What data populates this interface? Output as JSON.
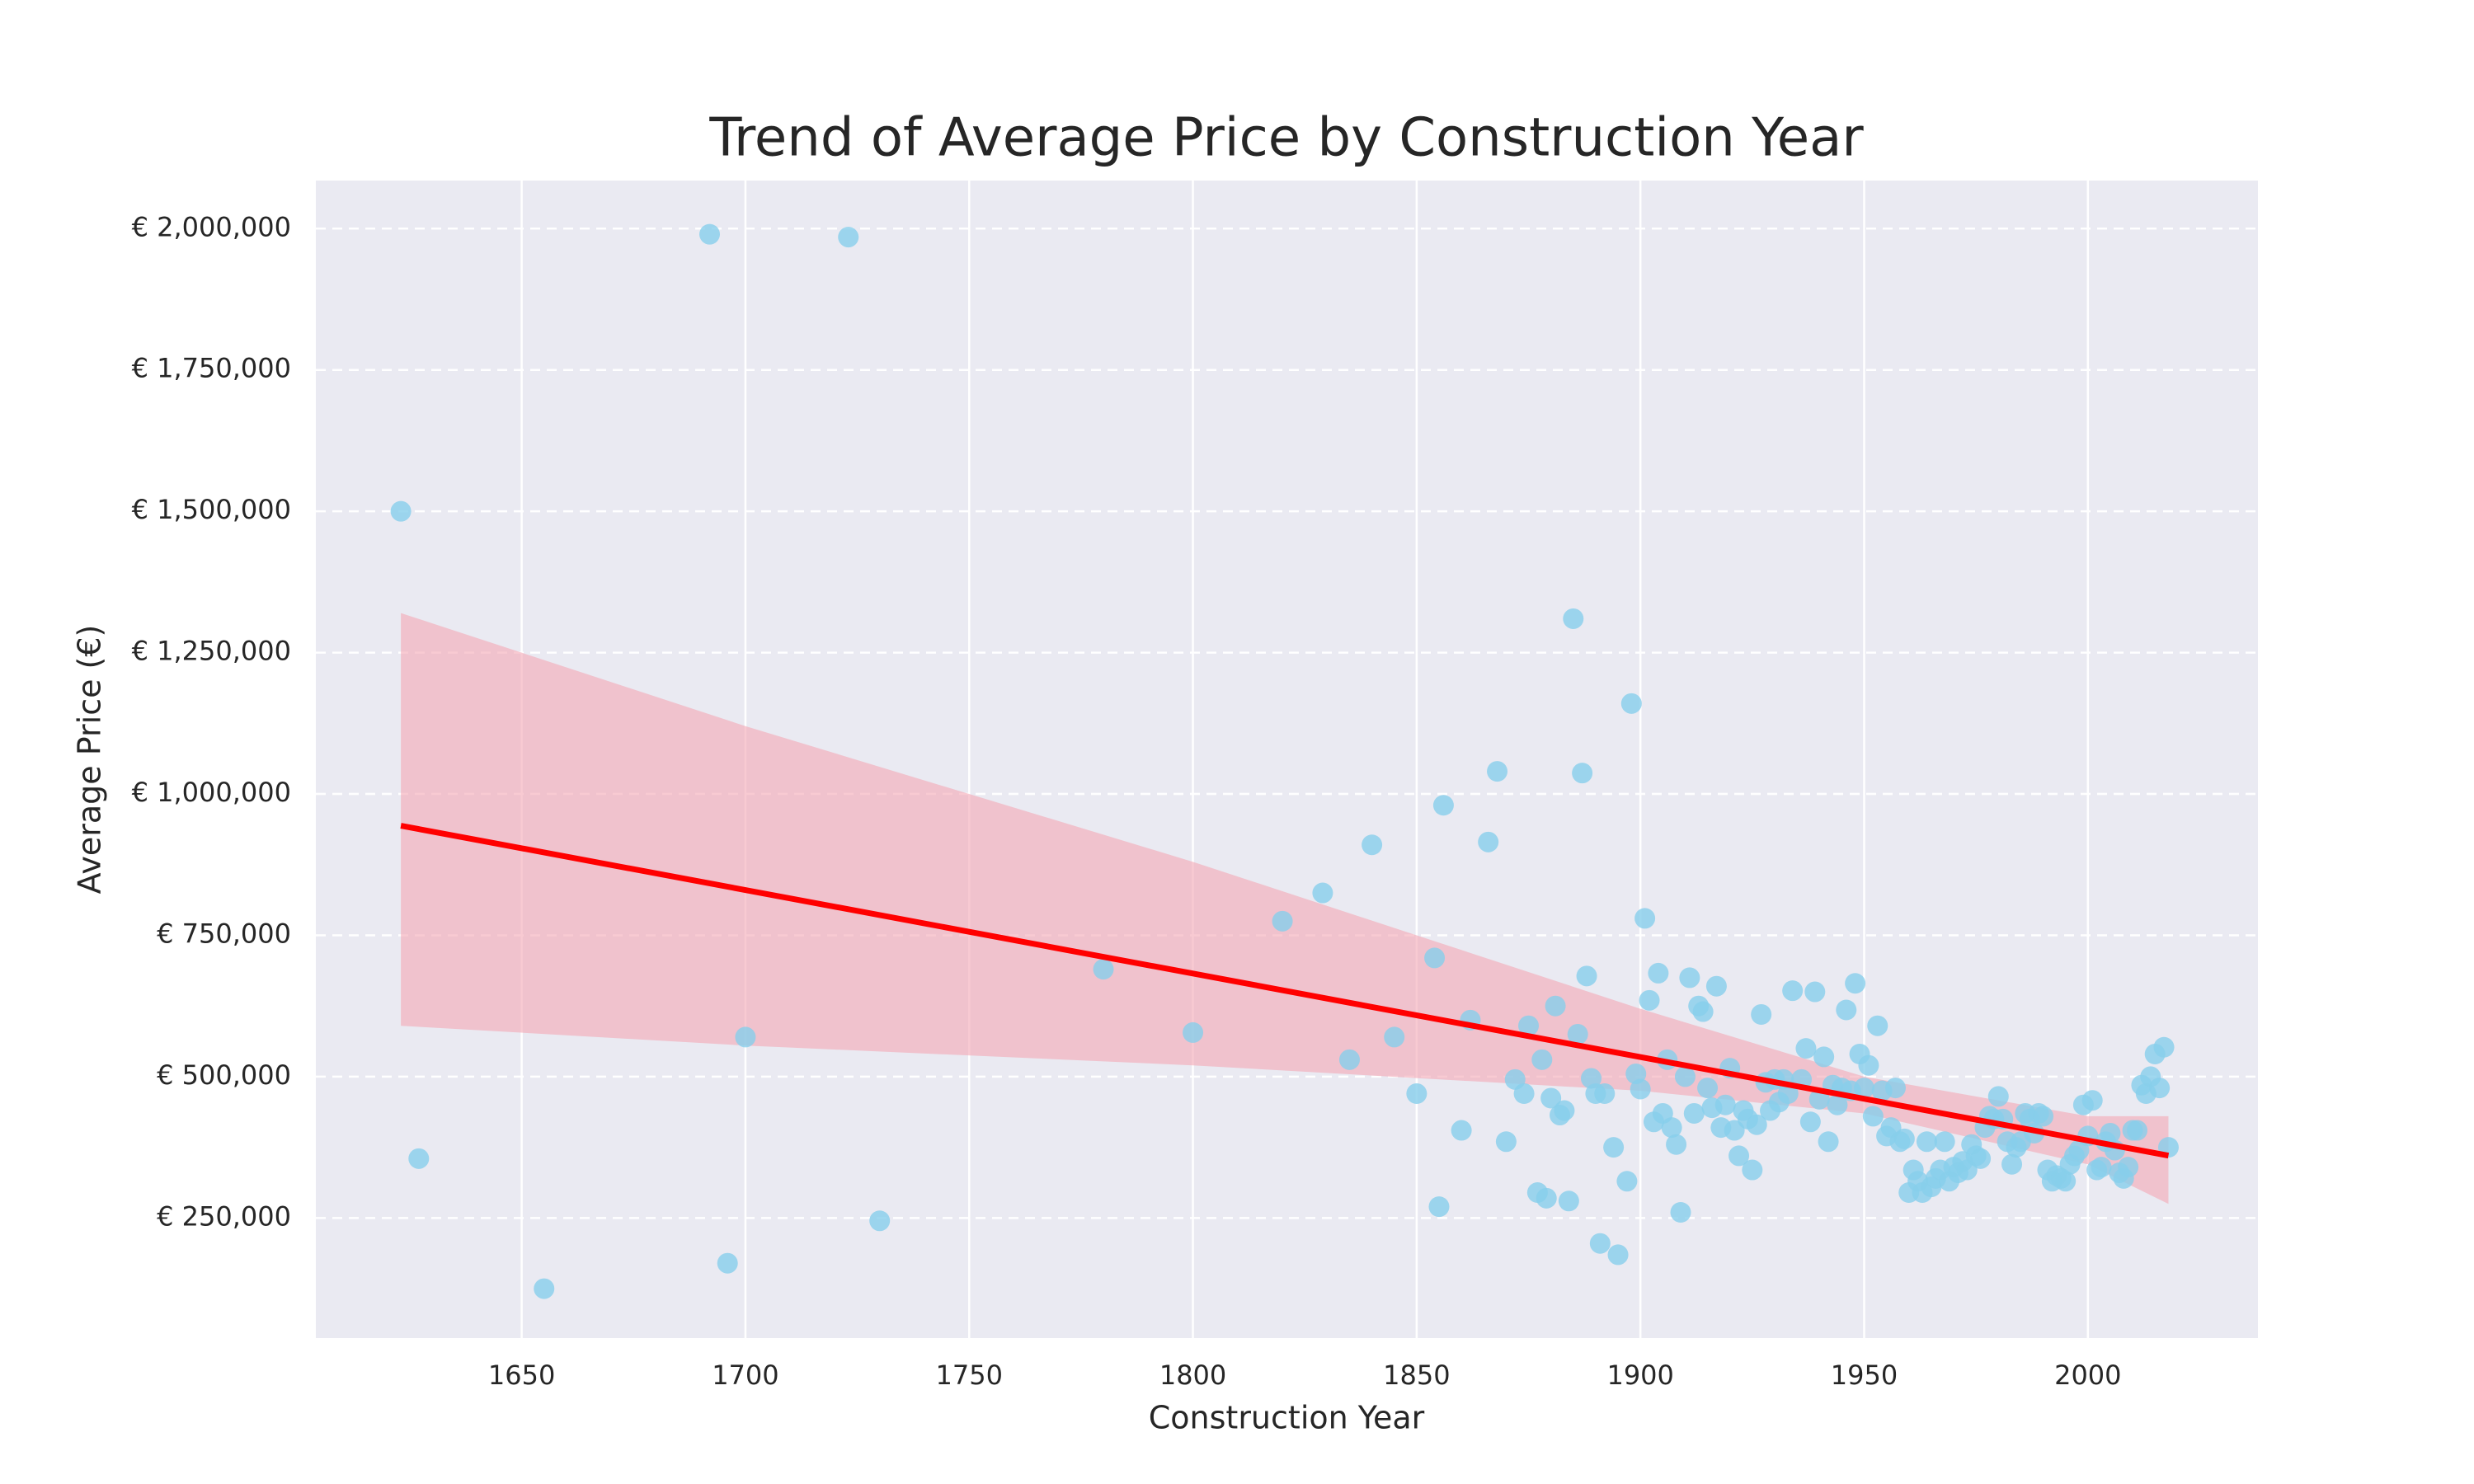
{
  "chart_data": {
    "type": "scatter",
    "title": "Trend of Average Price by Construction Year",
    "xlabel": "Construction Year",
    "ylabel": "Average Price (€)",
    "xlim": [
      1604,
      2038
    ],
    "ylim": [
      37600,
      2085000
    ],
    "xticks": [
      1650,
      1700,
      1750,
      1800,
      1850,
      1900,
      1950,
      2000
    ],
    "yticks": [
      {
        "value": 250000,
        "label": "€ 250,000"
      },
      {
        "value": 500000,
        "label": "€ 500,000"
      },
      {
        "value": 750000,
        "label": "€ 750,000"
      },
      {
        "value": 1000000,
        "label": "€ 1,000,000"
      },
      {
        "value": 1250000,
        "label": "€ 1,250,000"
      },
      {
        "value": 1500000,
        "label": "€ 1,500,000"
      },
      {
        "value": 1750000,
        "label": "€ 1,750,000"
      },
      {
        "value": 2000000,
        "label": "€ 2,000,000"
      }
    ],
    "grid": true,
    "background": "#eaeaf2",
    "series": [
      {
        "color": "#87ceeb",
        "x": [
          1623,
          1627,
          1655,
          1692,
          1696,
          1700,
          1723,
          1730,
          1780,
          1800,
          1820,
          1829,
          1835,
          1840,
          1845,
          1850,
          1854,
          1855,
          1856,
          1860,
          1862,
          1866,
          1868,
          1870,
          1872,
          1874,
          1875,
          1877,
          1878,
          1879,
          1880,
          1881,
          1882,
          1883,
          1884,
          1885,
          1886,
          1887,
          1888,
          1889,
          1890,
          1891,
          1892,
          1894,
          1895,
          1897,
          1898,
          1899,
          1900,
          1901,
          1902,
          1903,
          1904,
          1905,
          1906,
          1907,
          1908,
          1909,
          1910,
          1911,
          1912,
          1913,
          1914,
          1915,
          1916,
          1917,
          1918,
          1919,
          1920,
          1921,
          1922,
          1923,
          1924,
          1925,
          1926,
          1927,
          1928,
          1929,
          1930,
          1931,
          1932,
          1933,
          1934,
          1936,
          1937,
          1938,
          1939,
          1940,
          1941,
          1942,
          1943,
          1944,
          1945,
          1946,
          1947,
          1948,
          1949,
          1950,
          1951,
          1952,
          1953,
          1954,
          1955,
          1956,
          1957,
          1958,
          1959,
          1960,
          1961,
          1962,
          1963,
          1964,
          1965,
          1966,
          1967,
          1968,
          1969,
          1970,
          1971,
          1972,
          1973,
          1974,
          1975,
          1976,
          1977,
          1978,
          1979,
          1980,
          1981,
          1982,
          1983,
          1984,
          1985,
          1986,
          1987,
          1988,
          1989,
          1990,
          1991,
          1992,
          1993,
          1994,
          1995,
          1996,
          1997,
          1998,
          1999,
          2000,
          2001,
          2002,
          2003,
          2004,
          2005,
          2006,
          2007,
          2008,
          2009,
          2010,
          2011,
          2012,
          2013,
          2014,
          2015,
          2016,
          2017,
          2018
        ],
        "values": [
          1500000,
          355000,
          125000,
          1990000,
          170000,
          570000,
          1985000,
          245000,
          690000,
          578000,
          775000,
          825000,
          530000,
          910000,
          570000,
          470000,
          710000,
          270000,
          980000,
          405000,
          600000,
          915000,
          1040000,
          385000,
          495000,
          470000,
          590000,
          295000,
          530000,
          285000,
          462000,
          625000,
          432000,
          440000,
          280000,
          1310000,
          575000,
          1037000,
          678000,
          497000,
          470000,
          205000,
          470000,
          375000,
          185000,
          315000,
          1160000,
          505000,
          478000,
          780000,
          635000,
          420000,
          683000,
          435000,
          530000,
          410000,
          380000,
          260000,
          500000,
          675000,
          435000,
          625000,
          615000,
          480000,
          445000,
          660000,
          410000,
          450000,
          515000,
          405000,
          360000,
          440000,
          425000,
          335000,
          415000,
          610000,
          490000,
          440000,
          495000,
          455000,
          495000,
          470000,
          652000,
          495000,
          550000,
          420000,
          650000,
          460000,
          535000,
          385000,
          485000,
          450000,
          480000,
          618000,
          475000,
          665000,
          540000,
          480000,
          520000,
          430000,
          590000,
          475000,
          395000,
          410000,
          480000,
          385000,
          390000,
          295000,
          335000,
          315000,
          295000,
          385000,
          305000,
          320000,
          335000,
          385000,
          315000,
          340000,
          330000,
          350000,
          335000,
          380000,
          360000,
          355000,
          410000,
          430000,
          425000,
          465000,
          425000,
          385000,
          345000,
          375000,
          385000,
          435000,
          425000,
          400000,
          435000,
          430000,
          335000,
          315000,
          325000,
          320000,
          315000,
          345000,
          360000,
          370000,
          450000,
          395000,
          458000,
          335000,
          340000,
          385000,
          400000,
          370000,
          330000,
          320000,
          340000,
          405000,
          405000,
          485000,
          470000,
          500000,
          540000,
          480000,
          552000,
          375000
        ]
      }
    ],
    "regression": {
      "color": "#ff0000",
      "x": [
        1623,
        2018
      ],
      "values": [
        943800,
        360400
      ]
    },
    "band": {
      "color": "#f4a6b4",
      "x": [
        1623,
        1700,
        1800,
        1900,
        1950,
        2000,
        2018
      ],
      "upper": [
        1320000,
        1120000,
        880000,
        620000,
        500000,
        430000,
        430000
      ],
      "lower": [
        590000,
        555000,
        520000,
        475000,
        435000,
        345000,
        275000
      ]
    }
  }
}
